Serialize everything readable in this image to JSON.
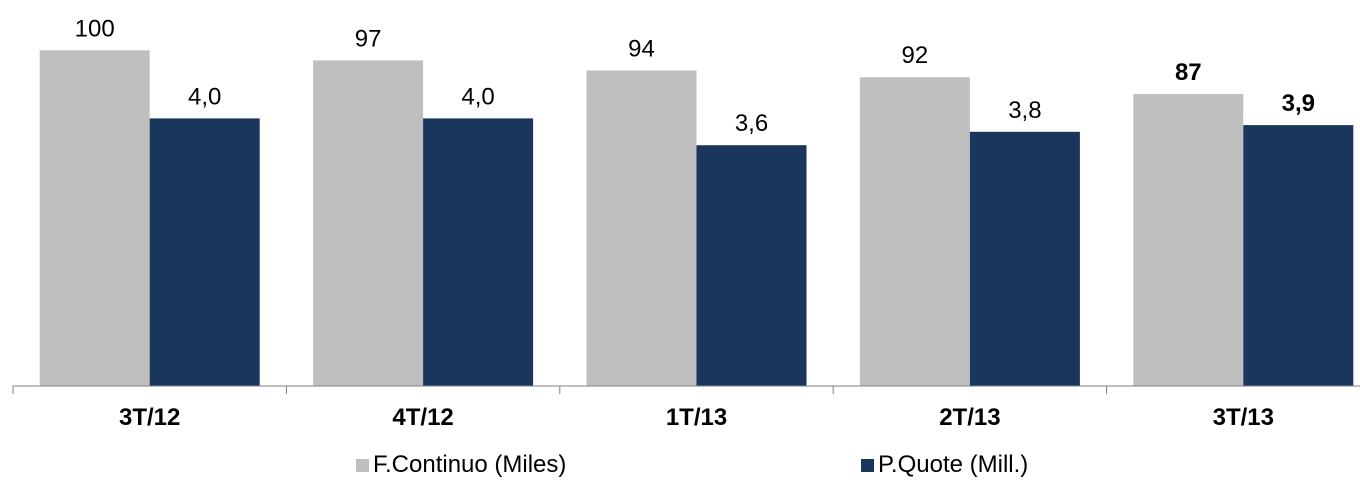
{
  "chart_data": {
    "type": "bar",
    "title": "",
    "categories": [
      "3T/12",
      "4T/12",
      "1T/13",
      "2T/13",
      "3T/13"
    ],
    "series": [
      {
        "name": "F.Continuo (Miles)",
        "values": [
          100,
          97,
          94,
          92,
          87
        ],
        "labels": [
          "100",
          "97",
          "94",
          "92",
          "87"
        ],
        "color": "#bfbfbf",
        "scale_max": 115
      },
      {
        "name": "P.Quote (Mill.)",
        "values": [
          4.0,
          4.0,
          3.6,
          3.8,
          3.9
        ],
        "labels": [
          "4,0",
          "4,0",
          "3,6",
          "3,8",
          "3,9"
        ],
        "color": "#1b365d",
        "scale_max": 5.77
      }
    ],
    "bold_last_labels": true,
    "legend_position": "bottom",
    "grid": false
  }
}
